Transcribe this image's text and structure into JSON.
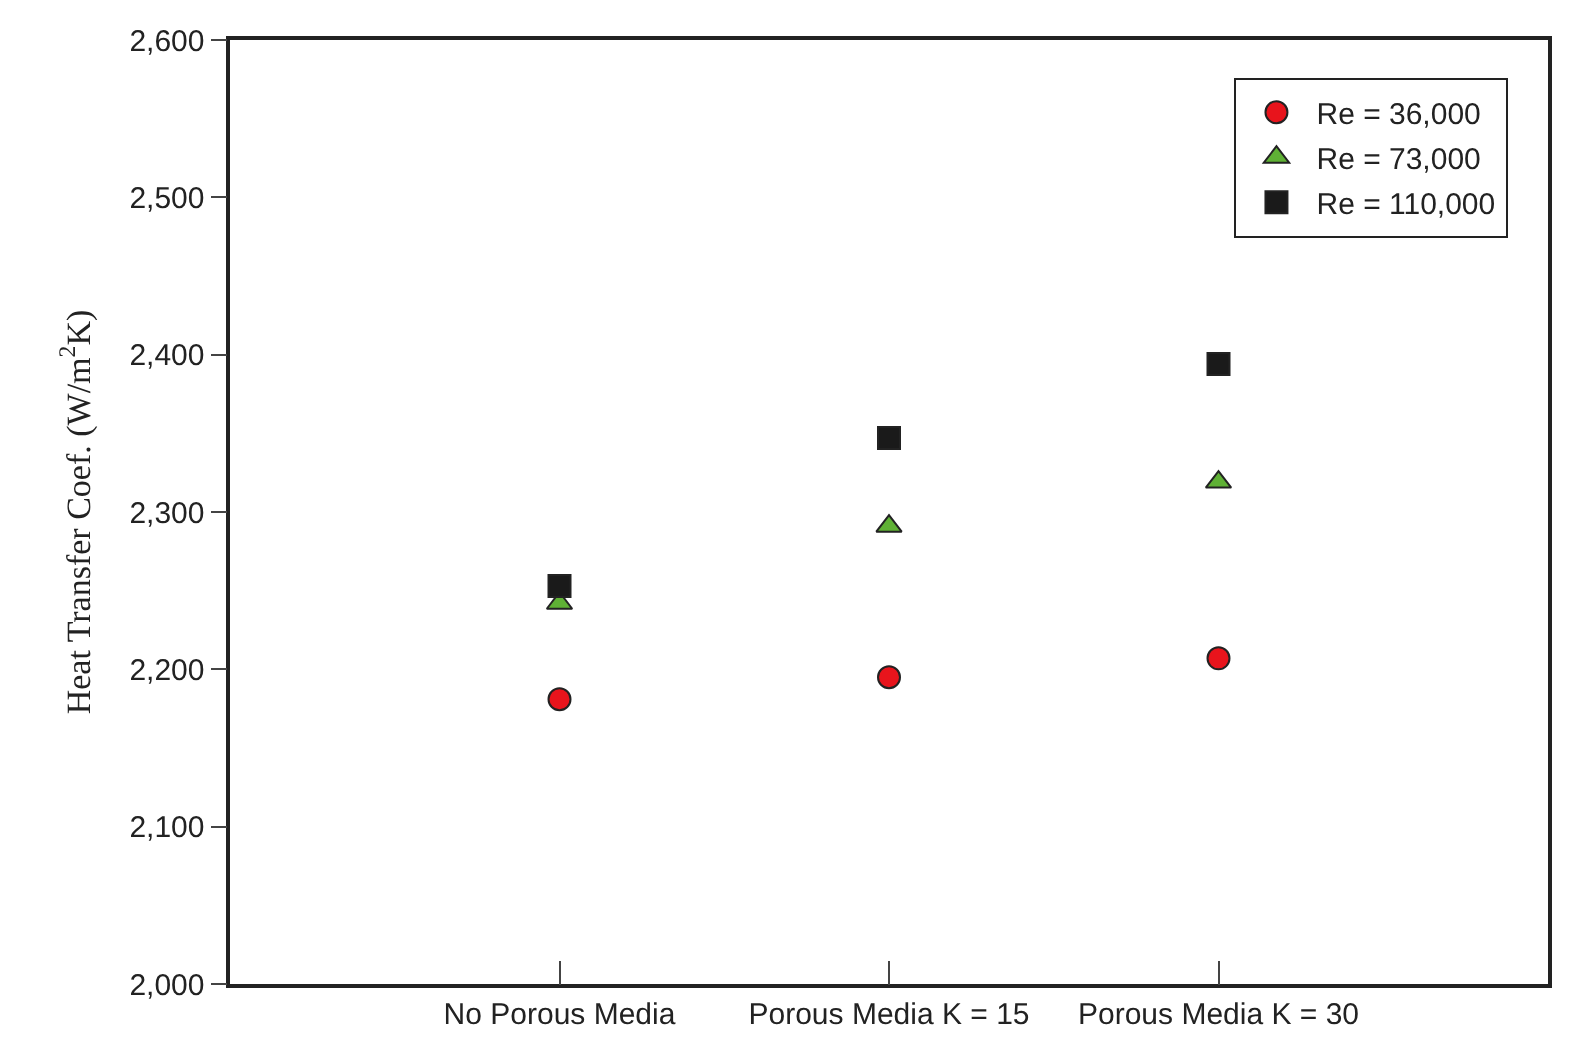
{
  "chart_data": {
    "type": "scatter",
    "ylabel": "Heat Transfer Coef. (W/m$^{2}$K)",
    "categories": [
      "No Porous Media",
      "Porous Media K = 15",
      "Porous Media K = 30"
    ],
    "ylim": [
      2000,
      2600
    ],
    "yticks": [
      {
        "value": 2000,
        "label": "2,000"
      },
      {
        "value": 2100,
        "label": "2,100"
      },
      {
        "value": 2200,
        "label": "2,200"
      },
      {
        "value": 2300,
        "label": "2,300"
      },
      {
        "value": 2400,
        "label": "2,400"
      },
      {
        "value": 2500,
        "label": "2,500"
      },
      {
        "value": 2600,
        "label": "2,600"
      }
    ],
    "legend": "top right",
    "series": [
      {
        "name": "Re = 36,000",
        "color": "#e8141c",
        "marker": "circle",
        "values": [
          2181,
          2195,
          2207
        ]
      },
      {
        "name": "Re = 73,000",
        "color": "#5fb135",
        "marker": "triangle",
        "values": [
          2242,
          2291,
          2319
        ]
      },
      {
        "name": "Re = 110,000",
        "color": "#1a1a1a",
        "marker": "square",
        "values": [
          2253,
          2347,
          2394
        ]
      }
    ]
  }
}
